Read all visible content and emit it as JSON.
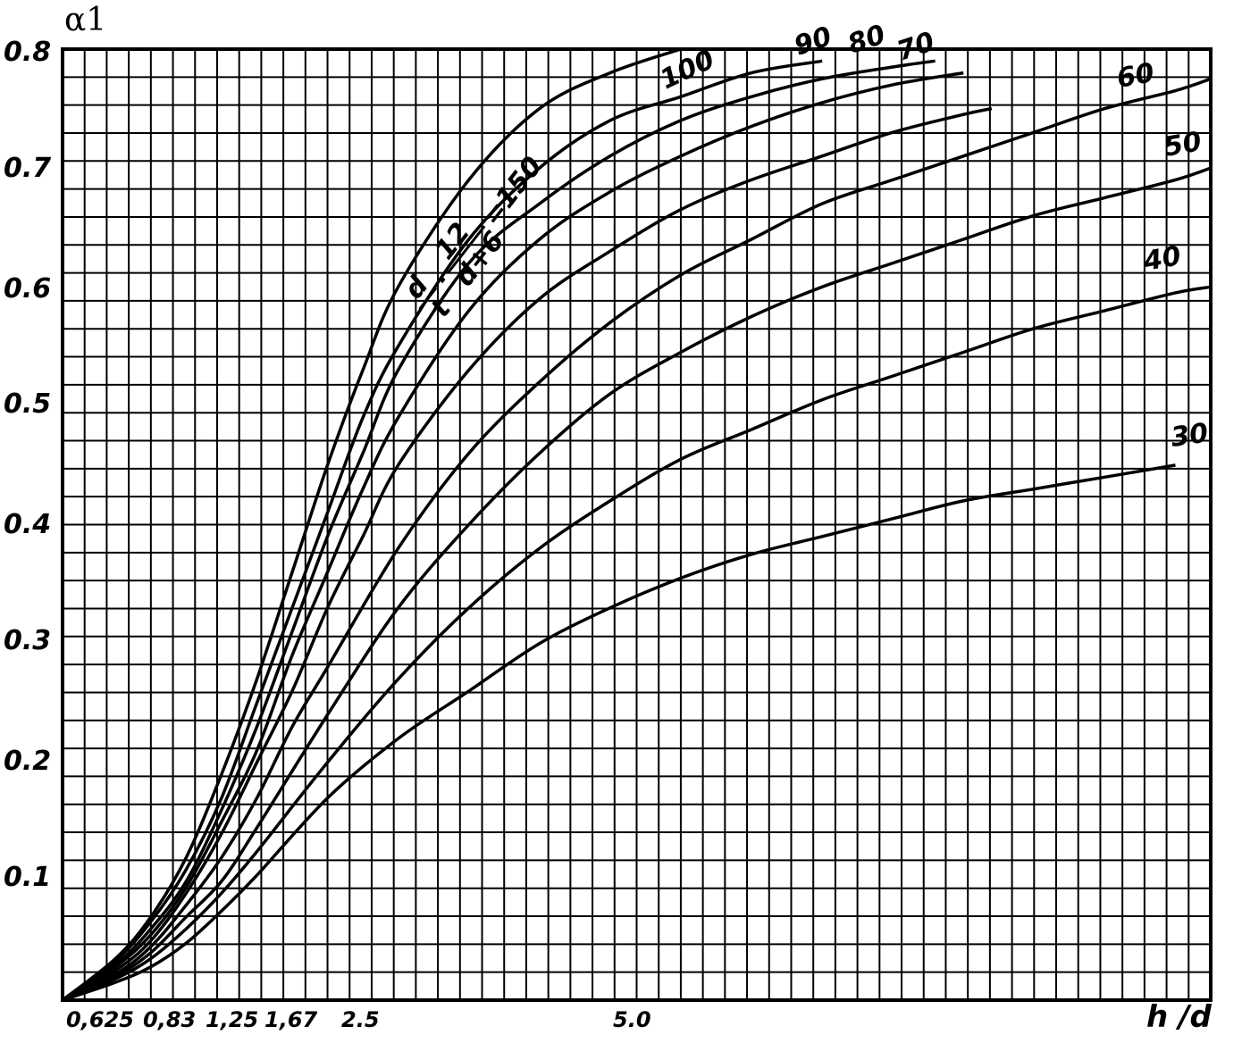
{
  "chart_data": {
    "type": "line",
    "ylabel": "α1",
    "xlabel": "h /d",
    "xlim": [
      0.625,
      8.75
    ],
    "ylim": [
      0,
      0.8
    ],
    "grid": true,
    "x_tick_labels": [
      "0,625",
      "0,83",
      "1,25",
      "1,67",
      "2.5",
      "5.0"
    ],
    "y_tick_labels": [
      "0.8",
      "0.7",
      "0.6",
      "0.5",
      "0.4",
      "0.3",
      "0.2",
      "0.1"
    ],
    "parameter_label": "d/t · 12/(d+6) = 150",
    "formula": {
      "frac1_num": "d",
      "frac1_den": "t",
      "dot": "·",
      "frac2_num": "12",
      "frac2_den": "d+6",
      "equals": "=150"
    },
    "series": [
      {
        "name": "150",
        "x": [
          0.625,
          1.0,
          1.25,
          1.5,
          1.75,
          2.0,
          2.25,
          2.5,
          2.75,
          3.0,
          3.5,
          4.0,
          4.5,
          5.0
        ],
        "y": [
          0,
          0.035,
          0.07,
          0.12,
          0.19,
          0.27,
          0.36,
          0.45,
          0.53,
          0.6,
          0.69,
          0.75,
          0.78,
          0.8
        ]
      },
      {
        "name": "100",
        "x": [
          0.625,
          1.0,
          1.25,
          1.5,
          1.75,
          2.0,
          2.25,
          2.5,
          2.75,
          3.0,
          3.5,
          4.0,
          4.5,
          5.0,
          5.5,
          6.0
        ],
        "y": [
          0,
          0.033,
          0.066,
          0.11,
          0.17,
          0.25,
          0.33,
          0.41,
          0.49,
          0.55,
          0.64,
          0.7,
          0.74,
          0.76,
          0.78,
          0.79
        ]
      },
      {
        "name": "90",
        "x": [
          0.625,
          1.0,
          1.25,
          1.5,
          1.75,
          2.0,
          2.25,
          2.5,
          2.75,
          3.0,
          3.5,
          4.0,
          4.5,
          5.0,
          5.5,
          6.0,
          6.5,
          6.8
        ],
        "y": [
          0,
          0.03,
          0.06,
          0.1,
          0.16,
          0.23,
          0.31,
          0.39,
          0.46,
          0.53,
          0.62,
          0.67,
          0.71,
          0.74,
          0.76,
          0.775,
          0.785,
          0.79
        ]
      },
      {
        "name": "80",
        "x": [
          0.625,
          1.0,
          1.25,
          1.5,
          1.75,
          2.0,
          2.25,
          2.5,
          2.75,
          3.0,
          3.5,
          4.0,
          4.5,
          5.0,
          5.5,
          6.0,
          6.5,
          7.0
        ],
        "y": [
          0,
          0.028,
          0.055,
          0.095,
          0.15,
          0.21,
          0.29,
          0.36,
          0.43,
          0.49,
          0.58,
          0.64,
          0.68,
          0.71,
          0.735,
          0.755,
          0.77,
          0.78
        ]
      },
      {
        "name": "70",
        "x": [
          0.625,
          1.0,
          1.25,
          1.5,
          1.75,
          2.0,
          2.25,
          2.5,
          2.75,
          3.0,
          3.5,
          4.0,
          4.5,
          5.0,
          5.5,
          6.0,
          6.5,
          7.0,
          7.2
        ],
        "y": [
          0,
          0.025,
          0.05,
          0.09,
          0.14,
          0.2,
          0.26,
          0.33,
          0.39,
          0.45,
          0.53,
          0.59,
          0.63,
          0.665,
          0.69,
          0.71,
          0.73,
          0.745,
          0.75
        ]
      },
      {
        "name": "60",
        "x": [
          0.625,
          1.0,
          1.25,
          1.5,
          1.75,
          2.0,
          2.25,
          2.5,
          3.0,
          3.5,
          4.0,
          4.5,
          5.0,
          5.5,
          6.0,
          6.5,
          7.0,
          7.5,
          8.0,
          8.5,
          8.75
        ],
        "y": [
          0,
          0.022,
          0.045,
          0.08,
          0.12,
          0.17,
          0.23,
          0.28,
          0.38,
          0.46,
          0.52,
          0.57,
          0.61,
          0.64,
          0.67,
          0.69,
          0.71,
          0.73,
          0.75,
          0.765,
          0.775
        ]
      },
      {
        "name": "50",
        "x": [
          0.625,
          1.0,
          1.25,
          1.5,
          1.75,
          2.0,
          2.5,
          3.0,
          3.5,
          4.0,
          4.5,
          5.0,
          5.5,
          6.0,
          6.5,
          7.0,
          7.5,
          8.0,
          8.5,
          8.75
        ],
        "y": [
          0,
          0.02,
          0.04,
          0.07,
          0.1,
          0.145,
          0.24,
          0.33,
          0.4,
          0.46,
          0.51,
          0.545,
          0.575,
          0.6,
          0.62,
          0.64,
          0.66,
          0.675,
          0.69,
          0.7
        ]
      },
      {
        "name": "40",
        "x": [
          0.625,
          1.0,
          1.25,
          1.5,
          1.75,
          2.0,
          2.5,
          3.0,
          3.5,
          4.0,
          4.5,
          5.0,
          5.5,
          6.0,
          6.5,
          7.0,
          7.5,
          8.0,
          8.5,
          8.75
        ],
        "y": [
          0,
          0.018,
          0.035,
          0.06,
          0.09,
          0.125,
          0.2,
          0.27,
          0.33,
          0.38,
          0.42,
          0.455,
          0.48,
          0.505,
          0.525,
          0.545,
          0.565,
          0.58,
          0.595,
          0.6
        ]
      },
      {
        "name": "30",
        "x": [
          0.625,
          1.0,
          1.25,
          1.5,
          1.75,
          2.0,
          2.5,
          3.0,
          3.5,
          4.0,
          4.5,
          5.0,
          5.5,
          6.0,
          6.5,
          7.0,
          7.5,
          8.0,
          8.5
        ],
        "y": [
          0,
          0.015,
          0.028,
          0.048,
          0.075,
          0.105,
          0.17,
          0.22,
          0.26,
          0.3,
          0.33,
          0.355,
          0.375,
          0.39,
          0.405,
          0.42,
          0.43,
          0.44,
          0.45
        ]
      }
    ],
    "curve_labels": [
      "150",
      "100",
      "90",
      "80",
      "70",
      "60",
      "50",
      "40",
      "30"
    ]
  }
}
